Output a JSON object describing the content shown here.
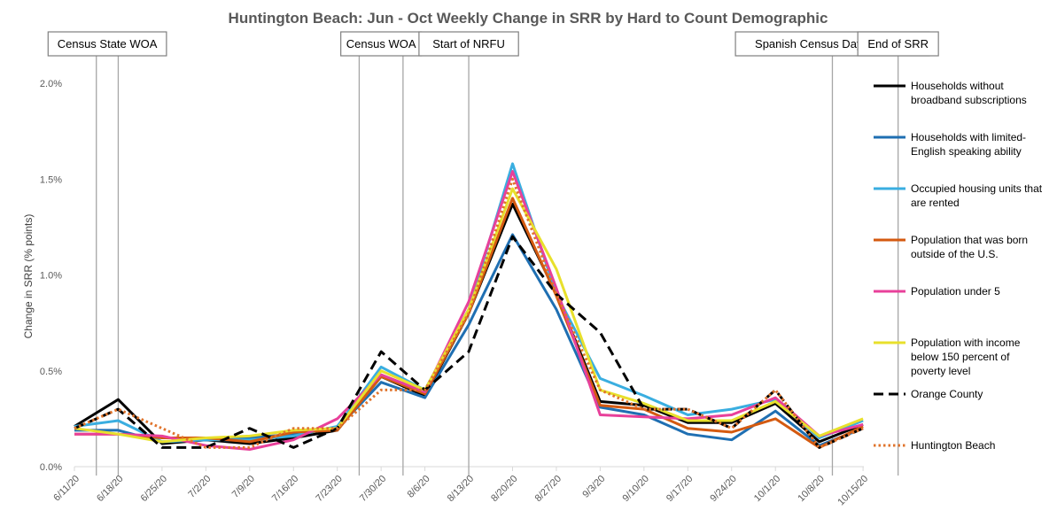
{
  "chart_data": {
    "type": "line",
    "title": "Huntington Beach: Jun - Oct Weekly Change in SRR by Hard to Count Demographic",
    "ylabel": "Change in SRR (% points)",
    "xlabel": "",
    "ylim": [
      0,
      2.1
    ],
    "yticks": [
      {
        "value": 0.0,
        "label": "0.0%"
      },
      {
        "value": 0.5,
        "label": "0.5%"
      },
      {
        "value": 1.0,
        "label": "1.0%"
      },
      {
        "value": 1.5,
        "label": "1.5%"
      },
      {
        "value": 2.0,
        "label": "2.0%"
      }
    ],
    "categories": [
      "6/11/20",
      "6/18/20",
      "6/25/20",
      "7/2/20",
      "7/9/20",
      "7/16/20",
      "7/23/20",
      "7/30/20",
      "8/6/20",
      "8/13/20",
      "8/20/20",
      "8/27/20",
      "9/3/20",
      "9/10/20",
      "9/17/20",
      "9/24/20",
      "10/1/20",
      "10/8/20",
      "10/15/20"
    ],
    "grid": false,
    "legend_position": "right",
    "annotations": [
      {
        "label": "Census State WOA",
        "lines": [
          0.5,
          1.0
        ]
      },
      {
        "label": "Census WOA",
        "lines": [
          6.5,
          7.5
        ]
      },
      {
        "label": "Start of NRFU",
        "lines": [
          9.0
        ]
      },
      {
        "label": "Spanish Census Day of Action",
        "lines": [
          17.3
        ]
      },
      {
        "label": "End of SRR",
        "lines": [
          18.8
        ]
      }
    ],
    "series": [
      {
        "name": "Households without broadband subscriptions",
        "name_lines": [
          "Households without",
          "broadband subscriptions"
        ],
        "color": "#000000",
        "style": "solid",
        "values": [
          0.21,
          0.35,
          0.12,
          0.14,
          0.12,
          0.15,
          0.19,
          0.47,
          0.37,
          0.8,
          1.37,
          0.9,
          0.34,
          0.32,
          0.23,
          0.23,
          0.33,
          0.13,
          0.22
        ]
      },
      {
        "name": "Households with limited-English speaking ability",
        "name_lines": [
          "Households with limited-",
          "English speaking ability"
        ],
        "color": "#1f6fb2",
        "style": "solid",
        "values": [
          0.19,
          0.19,
          0.13,
          0.14,
          0.15,
          0.17,
          0.2,
          0.44,
          0.36,
          0.74,
          1.21,
          0.82,
          0.31,
          0.27,
          0.17,
          0.14,
          0.29,
          0.11,
          0.2
        ]
      },
      {
        "name": "Occupied housing units that are rented",
        "name_lines": [
          "Occupied housing units that",
          "are rented"
        ],
        "color": "#3aaee0",
        "style": "solid",
        "values": [
          0.21,
          0.24,
          0.13,
          0.14,
          0.14,
          0.16,
          0.21,
          0.52,
          0.4,
          0.82,
          1.58,
          0.9,
          0.46,
          0.37,
          0.27,
          0.3,
          0.35,
          0.15,
          0.24
        ]
      },
      {
        "name": "Population that was born outside of the U.S.",
        "name_lines": [
          "Population that was born",
          "outside of the U.S."
        ],
        "color": "#d45a10",
        "style": "solid",
        "values": [
          0.17,
          0.17,
          0.15,
          0.15,
          0.13,
          0.18,
          0.19,
          0.47,
          0.38,
          0.8,
          1.4,
          0.89,
          0.32,
          0.3,
          0.2,
          0.18,
          0.25,
          0.1,
          0.21
        ]
      },
      {
        "name": "Population under 5",
        "name_lines": [
          "Population under 5"
        ],
        "color": "#e8409a",
        "style": "solid",
        "values": [
          0.17,
          0.17,
          0.16,
          0.11,
          0.09,
          0.14,
          0.25,
          0.48,
          0.39,
          0.86,
          1.54,
          0.93,
          0.27,
          0.26,
          0.25,
          0.27,
          0.36,
          0.16,
          0.22
        ]
      },
      {
        "name": "Population with income below 150 percent of poverty level",
        "name_lines": [
          "Population with income",
          "below 150 percent of",
          "poverty level"
        ],
        "color": "#e8e02c",
        "style": "solid",
        "values": [
          0.2,
          0.17,
          0.13,
          0.15,
          0.16,
          0.19,
          0.2,
          0.5,
          0.4,
          0.82,
          1.45,
          1.03,
          0.4,
          0.33,
          0.24,
          0.24,
          0.34,
          0.16,
          0.25
        ]
      },
      {
        "name": "Orange County",
        "name_lines": [
          "Orange County"
        ],
        "color": "#000000",
        "style": "dashed",
        "values": [
          0.2,
          0.3,
          0.1,
          0.1,
          0.2,
          0.1,
          0.2,
          0.6,
          0.4,
          0.6,
          1.2,
          0.9,
          0.7,
          0.3,
          0.3,
          0.2,
          0.4,
          0.1,
          0.2
        ]
      },
      {
        "name": "Huntington Beach",
        "name_lines": [
          "Huntington Beach"
        ],
        "color": "#e0742c",
        "style": "dotted",
        "values": [
          0.2,
          0.3,
          0.2,
          0.1,
          0.1,
          0.2,
          0.2,
          0.4,
          0.4,
          0.8,
          1.5,
          0.9,
          0.4,
          0.3,
          0.3,
          0.2,
          0.4,
          0.1,
          0.2
        ]
      }
    ]
  }
}
